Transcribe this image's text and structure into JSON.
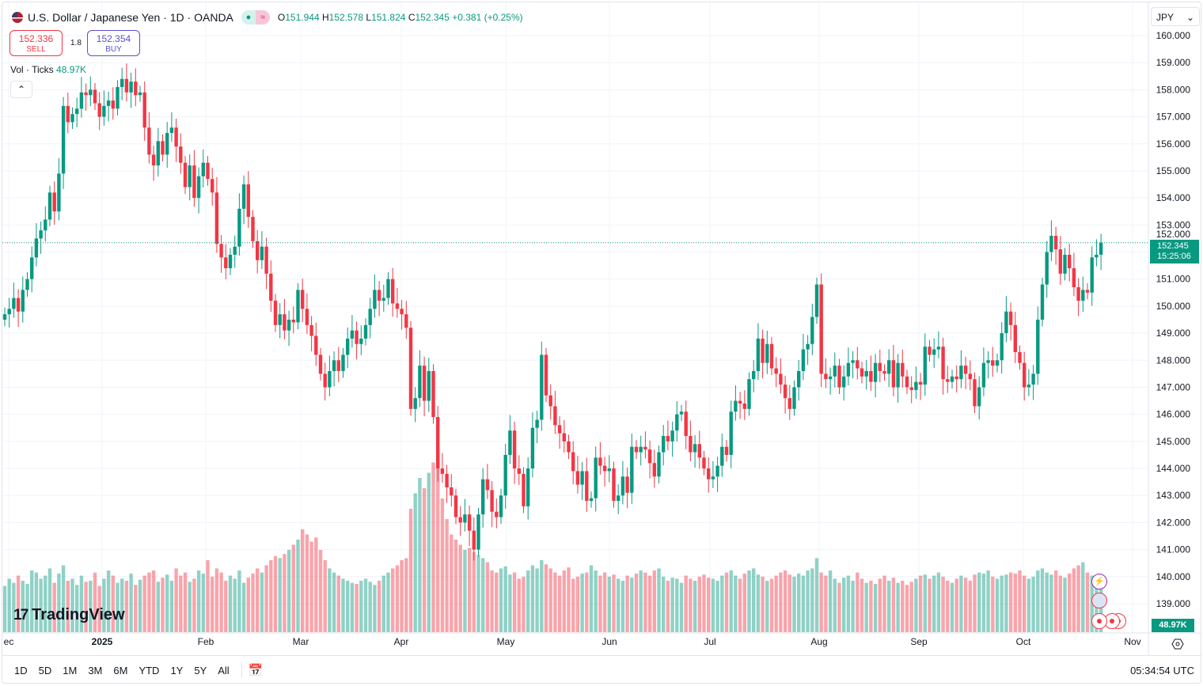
{
  "header": {
    "symbol": "U.S. Dollar / Japanese Yen · 1D · OANDA",
    "open_label": "O",
    "open": "151.944",
    "high_label": "H",
    "high": "152.578",
    "low_label": "L",
    "low": "151.824",
    "close_label": "C",
    "close": "152.345",
    "change": "+0.381 (+0.25%)",
    "market_status": "open",
    "wave_icon": "≈"
  },
  "trade": {
    "sell_price": "152.336",
    "sell_label": "SELL",
    "spread": "1.8",
    "buy_price": "152.354",
    "buy_label": "BUY"
  },
  "volume_legend": {
    "label": "Vol · Ticks",
    "value": "48.97K"
  },
  "currency": "JPY",
  "last_price": {
    "price": "152.345",
    "countdown": "15:25:06"
  },
  "last_volume": "48.97K",
  "logo": "TradingView",
  "time_axis": [
    "ec",
    "2025",
    "Feb",
    "Mar",
    "Apr",
    "May",
    "Jun",
    "Jul",
    "Aug",
    "Sep",
    "Oct",
    "Nov"
  ],
  "ranges": [
    "1D",
    "5D",
    "1M",
    "3M",
    "6M",
    "YTD",
    "1Y",
    "5Y",
    "All"
  ],
  "clock": "05:34:54 UTC",
  "colors": {
    "up": "#089981",
    "down": "#f23645",
    "accent": "#2962ff"
  },
  "chart_data": {
    "type": "candlestick",
    "ylim": [
      138.2,
      160.5
    ],
    "yticks": [
      "160.000",
      "159.000",
      "158.000",
      "157.000",
      "156.000",
      "155.000",
      "154.000",
      "153.000",
      "152.000",
      "151.000",
      "150.000",
      "149.000",
      "148.000",
      "147.000",
      "146.000",
      "145.000",
      "144.000",
      "143.000",
      "142.000",
      "141.000",
      "140.000",
      "139.000"
    ],
    "close": [
      149.7,
      149.9,
      150.3,
      149.8,
      150.6,
      151.0,
      151.8,
      152.5,
      152.8,
      153.2,
      154.2,
      153.5,
      154.9,
      157.4,
      156.8,
      157.1,
      157.3,
      157.9,
      157.8,
      158.0,
      157.5,
      157.0,
      157.4,
      157.6,
      157.3,
      158.1,
      158.4,
      157.9,
      158.3,
      157.8,
      157.9,
      156.6,
      155.6,
      155.2,
      156.1,
      155.6,
      156.4,
      156.6,
      155.9,
      155.3,
      154.4,
      155.2,
      154.0,
      154.8,
      155.3,
      154.7,
      154.2,
      152.3,
      151.8,
      151.4,
      151.9,
      152.2,
      153.6,
      154.5,
      153.3,
      152.4,
      151.7,
      152.2,
      151.2,
      150.2,
      149.3,
      149.7,
      149.1,
      149.5,
      149.4,
      150.6,
      149.9,
      149.3,
      148.9,
      148.2,
      147.5,
      147.0,
      147.6,
      148.0,
      147.6,
      148.2,
      148.8,
      149.1,
      148.6,
      148.8,
      149.3,
      149.9,
      150.6,
      150.2,
      150.3,
      151.0,
      150.1,
      149.9,
      149.7,
      149.2,
      146.2,
      146.6,
      147.8,
      146.5,
      147.6,
      145.9,
      144.0,
      143.8,
      143.3,
      143.0,
      142.2,
      142.0,
      142.3,
      141.7,
      141.0,
      142.3,
      143.6,
      143.2,
      142.4,
      142.2,
      143.0,
      144.5,
      145.4,
      144.0,
      143.8,
      142.6,
      144.0,
      145.5,
      145.8,
      148.2,
      146.7,
      146.3,
      145.6,
      145.3,
      145.0,
      144.6,
      143.9,
      143.4,
      143.9,
      142.8,
      142.9,
      144.4,
      144.1,
      143.9,
      144.0,
      142.8,
      143.0,
      143.7,
      143.1,
      144.8,
      144.6,
      144.8,
      144.7,
      144.2,
      143.7,
      144.6,
      145.2,
      145.0,
      145.4,
      146.0,
      146.1,
      145.2,
      144.6,
      144.9,
      144.4,
      144.0,
      143.6,
      143.7,
      144.1,
      144.8,
      144.5,
      146.1,
      146.5,
      146.4,
      146.2,
      147.3,
      147.6,
      148.8,
      147.9,
      148.6,
      147.7,
      147.5,
      147.1,
      146.6,
      146.2,
      147.0,
      147.6,
      148.4,
      148.6,
      149.6,
      150.8,
      147.5,
      147.3,
      147.4,
      147.8,
      147.0,
      147.4,
      147.9,
      148.0,
      147.7,
      147.4,
      147.6,
      147.2,
      147.9,
      147.6,
      147.5,
      148.0,
      147.0,
      147.9,
      147.4,
      147.0,
      146.9,
      147.2,
      147.1,
      148.5,
      148.2,
      148.4,
      148.5,
      147.3,
      147.2,
      147.4,
      147.3,
      147.8,
      147.5,
      147.3,
      146.3,
      147.0,
      147.9,
      148.0,
      147.8,
      148.0,
      149.0,
      149.8,
      149.3,
      148.3,
      147.9,
      147.0,
      147.1,
      147.5,
      149.5,
      150.8,
      152.0,
      152.6,
      152.1,
      151.2,
      151.9,
      151.4,
      150.7,
      150.2,
      150.6,
      150.5,
      151.8,
      151.9,
      152.345
    ],
    "volume_k": [
      45,
      52,
      48,
      55,
      50,
      47,
      60,
      58,
      52,
      55,
      62,
      48,
      57,
      65,
      50,
      52,
      46,
      55,
      49,
      50,
      58,
      45,
      52,
      60,
      55,
      48,
      52,
      50,
      57,
      46,
      51,
      55,
      58,
      60,
      49,
      53,
      56,
      50,
      62,
      55,
      58,
      49,
      52,
      60,
      57,
      70,
      54,
      62,
      58,
      50,
      55,
      52,
      60,
      48,
      53,
      57,
      62,
      58,
      65,
      70,
      74,
      72,
      76,
      80,
      85,
      90,
      100,
      95,
      88,
      92,
      80,
      70,
      62,
      58,
      55,
      52,
      50,
      48,
      47,
      50,
      52,
      49,
      46,
      50,
      55,
      58,
      62,
      65,
      70,
      72,
      120,
      135,
      150,
      140,
      155,
      165,
      160,
      130,
      110,
      95,
      90,
      85,
      80,
      82,
      78,
      75,
      72,
      68,
      60,
      58,
      62,
      64,
      56,
      58,
      52,
      54,
      60,
      65,
      62,
      70,
      66,
      62,
      58,
      55,
      60,
      63,
      52,
      54,
      57,
      58,
      65,
      60,
      55,
      58,
      54,
      56,
      52,
      50,
      55,
      53,
      57,
      60,
      58,
      55,
      60,
      62,
      54,
      50,
      53,
      52,
      48,
      55,
      52,
      50,
      54,
      56,
      53,
      52,
      50,
      55,
      58,
      60,
      55,
      52,
      57,
      60,
      62,
      56,
      54,
      50,
      52,
      55,
      58,
      60,
      56,
      54,
      57,
      55,
      60,
      62,
      72,
      58,
      55,
      60,
      52,
      48,
      53,
      55,
      50,
      58,
      52,
      48,
      50,
      47,
      52,
      55,
      50,
      53,
      48,
      50,
      46,
      49,
      52,
      55,
      56,
      52,
      55,
      58,
      54,
      50,
      48,
      52,
      55,
      53,
      50,
      56,
      58,
      57,
      60,
      54,
      52,
      55,
      56,
      58,
      57,
      60,
      55,
      52,
      54,
      60,
      62,
      58,
      56,
      60,
      55,
      53,
      57,
      62,
      65,
      68,
      58,
      55,
      52,
      48.97
    ],
    "last_price": 152.345
  }
}
